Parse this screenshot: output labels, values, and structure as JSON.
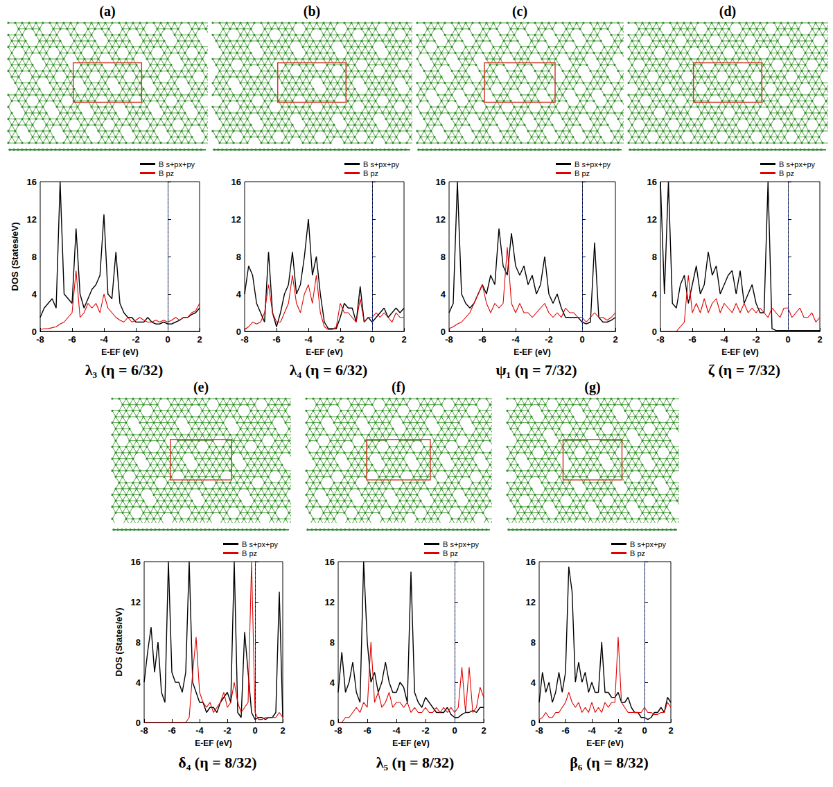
{
  "chart_data": [
    {
      "type": "line",
      "panel": "(a)",
      "title": "λ₃ (η = 6/32)",
      "x_label": "E-EF (eV)",
      "y_label": "DOS (States/eV)",
      "xlim": [
        -8,
        2
      ],
      "xticks": [
        -8,
        -6,
        -4,
        -2,
        0,
        2
      ],
      "ylim": [
        0,
        16
      ],
      "yticks": [
        0,
        4,
        8,
        12,
        16
      ],
      "fermi_level": 0,
      "legend": "top",
      "x": [
        -8,
        -7.75,
        -7.5,
        -7.25,
        -7,
        -6.75,
        -6.5,
        -6.25,
        -6,
        -5.75,
        -5.5,
        -5.25,
        -5,
        -4.75,
        -4.5,
        -4.25,
        -4,
        -3.75,
        -3.5,
        -3.25,
        -3,
        -2.75,
        -2.5,
        -2.25,
        -2,
        -1.75,
        -1.5,
        -1.25,
        -1,
        -0.75,
        -0.5,
        -0.25,
        0,
        0.25,
        0.5,
        0.75,
        1,
        1.25,
        1.5,
        1.75,
        2
      ],
      "series": [
        {
          "name": "B s+px+py",
          "color": "#000000",
          "values": [
            1.5,
            2.5,
            3,
            3.5,
            2.5,
            16,
            4,
            3.5,
            3,
            11,
            4,
            2.5,
            3.5,
            4.5,
            5,
            6,
            12.5,
            4,
            3.5,
            8.5,
            3,
            2,
            1.5,
            1.5,
            1,
            1,
            1,
            1.5,
            1,
            0.8,
            0.8,
            1,
            0.8,
            0.8,
            1,
            1.2,
            1.5,
            1.5,
            1.8,
            2,
            2.5
          ]
        },
        {
          "name": "B pz",
          "color": "#e00000",
          "values": [
            0.2,
            0.3,
            0.3,
            0.4,
            0.5,
            0.8,
            1,
            1.5,
            2,
            6.5,
            1.5,
            2,
            3,
            2.5,
            3,
            2,
            4,
            2.5,
            2,
            1.5,
            1.2,
            1,
            1.5,
            1,
            1.2,
            1.5,
            1.2,
            1,
            1,
            1.2,
            1,
            1.2,
            1,
            1.2,
            1.5,
            1.2,
            1.5,
            1.5,
            2,
            2.2,
            3
          ]
        }
      ]
    },
    {
      "type": "line",
      "panel": "(b)",
      "title": "λ₄ (η = 6/32)",
      "x_label": "E-EF (eV)",
      "xlim": [
        -8,
        2
      ],
      "xticks": [
        -8,
        -6,
        -4,
        -2,
        0,
        2
      ],
      "ylim": [
        0,
        16
      ],
      "yticks": [
        0,
        4,
        8,
        12,
        16
      ],
      "fermi_level": 0,
      "legend": "top",
      "x": [
        -8,
        -7.75,
        -7.5,
        -7.25,
        -7,
        -6.75,
        -6.5,
        -6.25,
        -6,
        -5.75,
        -5.5,
        -5.25,
        -5,
        -4.75,
        -4.5,
        -4.25,
        -4,
        -3.75,
        -3.5,
        -3.25,
        -3,
        -2.75,
        -2.5,
        -2.25,
        -2,
        -1.75,
        -1.5,
        -1.25,
        -1,
        -0.75,
        -0.5,
        -0.25,
        0,
        0.25,
        0.5,
        0.75,
        1,
        1.25,
        1.5,
        1.75,
        2
      ],
      "series": [
        {
          "name": "B s+px+py",
          "color": "#000000",
          "values": [
            4,
            7,
            6,
            3,
            2,
            1,
            8.5,
            2,
            0.5,
            2,
            4,
            5,
            8.5,
            4,
            5,
            8,
            12,
            6,
            8,
            4,
            1,
            0.3,
            0.3,
            0.3,
            1.5,
            3,
            2.5,
            2.5,
            1,
            4.8,
            1,
            1.5,
            1,
            1.5,
            2,
            2.5,
            1.5,
            2,
            2.5,
            2,
            2.5
          ]
        },
        {
          "name": "B pz",
          "color": "#e00000",
          "values": [
            0.2,
            0.5,
            1,
            0.8,
            1,
            2,
            5,
            2,
            1,
            1,
            2,
            3,
            6,
            3,
            2,
            4,
            5,
            3,
            6,
            2,
            0.5,
            0.2,
            0.2,
            0.5,
            3,
            2,
            2,
            1.5,
            1,
            3.5,
            1,
            1.5,
            1.5,
            2,
            1.5,
            2,
            1.5,
            1,
            2,
            1.5,
            1.5
          ]
        }
      ]
    },
    {
      "type": "line",
      "panel": "(c)",
      "title": "ψ₁ (η = 7/32)",
      "x_label": "E-EF (eV)",
      "xlim": [
        -8,
        2
      ],
      "xticks": [
        -8,
        -6,
        -4,
        -2,
        0,
        2
      ],
      "ylim": [
        0,
        16
      ],
      "yticks": [
        0,
        4,
        8,
        12,
        16
      ],
      "fermi_level": 0,
      "legend": "top",
      "x": [
        -8,
        -7.75,
        -7.5,
        -7.25,
        -7,
        -6.75,
        -6.5,
        -6.25,
        -6,
        -5.75,
        -5.5,
        -5.25,
        -5,
        -4.75,
        -4.5,
        -4.25,
        -4,
        -3.75,
        -3.5,
        -3.25,
        -3,
        -2.75,
        -2.5,
        -2.25,
        -2,
        -1.75,
        -1.5,
        -1.25,
        -1,
        -0.75,
        -0.5,
        -0.25,
        0,
        0.25,
        0.5,
        0.75,
        1,
        1.25,
        1.5,
        1.75,
        2
      ],
      "series": [
        {
          "name": "B s+px+py",
          "color": "#000000",
          "values": [
            2,
            3,
            16,
            4,
            3,
            2.5,
            3,
            4,
            5,
            4,
            6,
            5,
            11,
            7,
            6,
            10.5,
            7,
            6,
            7,
            5,
            6,
            4,
            5,
            8,
            4,
            3,
            4,
            2.5,
            1.5,
            1.5,
            1.5,
            1.5,
            1,
            0.8,
            1,
            9.5,
            1.5,
            1,
            1,
            1.2,
            1.5
          ]
        },
        {
          "name": "B pz",
          "color": "#e00000",
          "values": [
            0.3,
            0.5,
            0.8,
            1,
            1.5,
            2,
            3,
            4,
            5,
            3,
            2,
            3,
            2.5,
            3,
            9,
            3,
            2,
            3,
            2,
            2,
            1.5,
            2,
            2.5,
            3,
            2,
            1.5,
            2,
            1.5,
            2.5,
            2,
            2,
            1.5,
            1.5,
            1,
            1.5,
            2,
            1.5,
            1.5,
            1.2,
            1.5,
            2
          ]
        }
      ]
    },
    {
      "type": "line",
      "panel": "(d)",
      "title": "ζ (η = 7/32)",
      "x_label": "E-EF (eV)",
      "xlim": [
        -8,
        2
      ],
      "xticks": [
        -8,
        -6,
        -4,
        -2,
        0,
        2
      ],
      "ylim": [
        0,
        16
      ],
      "yticks": [
        0,
        4,
        8,
        12,
        16
      ],
      "fermi_level": 0,
      "legend": "top",
      "x": [
        -8,
        -7.75,
        -7.5,
        -7.25,
        -7,
        -6.75,
        -6.5,
        -6.25,
        -6,
        -5.75,
        -5.5,
        -5.25,
        -5,
        -4.75,
        -4.5,
        -4.25,
        -4,
        -3.75,
        -3.5,
        -3.25,
        -3,
        -2.75,
        -2.5,
        -2.25,
        -2,
        -1.75,
        -1.5,
        -1.25,
        -1,
        -0.75,
        -0.5,
        -0.25,
        0,
        0.25,
        0.5,
        0.75,
        1,
        1.25,
        1.5,
        1.75,
        2
      ],
      "series": [
        {
          "name": "B s+px+py",
          "color": "#000000",
          "values": [
            16,
            4,
            16,
            3,
            2.5,
            5,
            6,
            3,
            5,
            7,
            4,
            5,
            8.5,
            6,
            7,
            4,
            5,
            6,
            6.5,
            4,
            6.5,
            3,
            4,
            5,
            3,
            2,
            2,
            16,
            0.3,
            0.1,
            0.1,
            0.1,
            0.1,
            0.1,
            0.1,
            0.1,
            0.1,
            0.1,
            0.1,
            0.1,
            0.1
          ]
        },
        {
          "name": "B pz",
          "color": "#e00000",
          "values": [
            0,
            0,
            0,
            0,
            0,
            0.5,
            1,
            6,
            2,
            3,
            2,
            3.5,
            2,
            3,
            3.5,
            2,
            3,
            2.5,
            2,
            3,
            2,
            3,
            2,
            2.5,
            2,
            2.5,
            2,
            1.5,
            2.5,
            2,
            1.5,
            2.5,
            2.5,
            1.5,
            2,
            2.5,
            1.5,
            1.5,
            2,
            1,
            1.5
          ]
        }
      ]
    },
    {
      "type": "line",
      "panel": "(e)",
      "title": "δ₄ (η = 8/32)",
      "x_label": "E-EF (eV)",
      "y_label": "DOS (States/eV)",
      "xlim": [
        -8,
        2
      ],
      "xticks": [
        -8,
        -6,
        -4,
        -2,
        0,
        2
      ],
      "ylim": [
        0,
        16
      ],
      "yticks": [
        0,
        4,
        8,
        12,
        16
      ],
      "fermi_level": 0,
      "legend": "top",
      "x": [
        -8,
        -7.75,
        -7.5,
        -7.25,
        -7,
        -6.75,
        -6.5,
        -6.25,
        -6,
        -5.75,
        -5.5,
        -5.25,
        -5,
        -4.75,
        -4.5,
        -4.25,
        -4,
        -3.75,
        -3.5,
        -3.25,
        -3,
        -2.75,
        -2.5,
        -2.25,
        -2,
        -1.75,
        -1.5,
        -1.25,
        -1,
        -0.75,
        -0.5,
        -0.25,
        0,
        0.25,
        0.5,
        0.75,
        1,
        1.25,
        1.5,
        1.75,
        2
      ],
      "series": [
        {
          "name": "B s+px+py",
          "color": "#000000",
          "values": [
            4,
            7,
            9.5,
            5,
            8,
            3,
            2,
            16,
            5,
            4,
            4,
            3,
            5,
            16,
            4,
            3,
            2,
            2,
            1,
            1.5,
            1.5,
            1,
            2,
            2.5,
            3,
            2,
            16,
            1,
            0.5,
            9,
            5,
            1,
            0.3,
            0.5,
            0.5,
            0.3,
            0.5,
            0.5,
            1,
            13,
            0.5
          ]
        },
        {
          "name": "B pz",
          "color": "#e00000",
          "values": [
            0,
            0,
            0,
            0,
            0,
            0,
            0,
            0,
            0,
            0,
            0,
            0,
            0,
            0.5,
            5,
            8.5,
            3,
            2,
            1.5,
            2,
            1,
            1.5,
            2,
            3,
            1.5,
            2,
            4,
            2,
            1,
            1.5,
            2,
            16,
            1,
            0.3,
            0.3,
            0.5,
            0.5,
            0.5,
            0.5,
            1,
            0.5
          ]
        }
      ]
    },
    {
      "type": "line",
      "panel": "(f)",
      "title": "λ₅ (η = 8/32)",
      "x_label": "E-EF (eV)",
      "xlim": [
        -8,
        2
      ],
      "xticks": [
        -8,
        -6,
        -4,
        -2,
        0,
        2
      ],
      "ylim": [
        0,
        16
      ],
      "yticks": [
        0,
        4,
        8,
        12,
        16
      ],
      "fermi_level": 0,
      "legend": "top",
      "x": [
        -8,
        -7.75,
        -7.5,
        -7.25,
        -7,
        -6.75,
        -6.5,
        -6.25,
        -6,
        -5.75,
        -5.5,
        -5.25,
        -5,
        -4.75,
        -4.5,
        -4.25,
        -4,
        -3.75,
        -3.5,
        -3.25,
        -3,
        -2.75,
        -2.5,
        -2.25,
        -2,
        -1.75,
        -1.5,
        -1.25,
        -1,
        -0.75,
        -0.5,
        -0.25,
        0,
        0.25,
        0.5,
        0.75,
        1,
        1.25,
        1.5,
        1.75,
        2
      ],
      "series": [
        {
          "name": "B s+px+py",
          "color": "#000000",
          "values": [
            3,
            7,
            3,
            4,
            6,
            3,
            2,
            16,
            8,
            4,
            5,
            3,
            4,
            6,
            4,
            3,
            3,
            4,
            3.5,
            2,
            15,
            3,
            2,
            1.5,
            2.5,
            2,
            1.5,
            1,
            1,
            1,
            1.5,
            0.8,
            0.5,
            0.5,
            0.8,
            1,
            1,
            1.2,
            1,
            1.5,
            1.5
          ]
        },
        {
          "name": "B pz",
          "color": "#e00000",
          "values": [
            0,
            0,
            0.5,
            0.5,
            1,
            1.5,
            1,
            2,
            1.5,
            8,
            2,
            3,
            1.5,
            2,
            3,
            1.5,
            2,
            2,
            1.5,
            2,
            1,
            1.5,
            1,
            1,
            1.5,
            1,
            1,
            1.5,
            1,
            1.5,
            1,
            1.5,
            1,
            1.5,
            5.5,
            1,
            5.5,
            1,
            1.5,
            3.5,
            2.5
          ]
        }
      ]
    },
    {
      "type": "line",
      "panel": "(g)",
      "title": "β₆ (η = 8/32)",
      "x_label": "E-EF (eV)",
      "xlim": [
        -8,
        2
      ],
      "xticks": [
        -8,
        -6,
        -4,
        -2,
        0,
        2
      ],
      "ylim": [
        0,
        16
      ],
      "yticks": [
        0,
        4,
        8,
        12,
        16
      ],
      "fermi_level": 0,
      "legend": "top",
      "x": [
        -8,
        -7.75,
        -7.5,
        -7.25,
        -7,
        -6.75,
        -6.5,
        -6.25,
        -6,
        -5.75,
        -5.5,
        -5.25,
        -5,
        -4.75,
        -4.5,
        -4.25,
        -4,
        -3.75,
        -3.5,
        -3.25,
        -3,
        -2.75,
        -2.5,
        -2.25,
        -2,
        -1.75,
        -1.5,
        -1.25,
        -1,
        -0.75,
        -0.5,
        -0.25,
        0,
        0.25,
        0.5,
        0.75,
        1,
        1.25,
        1.5,
        1.75,
        2
      ],
      "series": [
        {
          "name": "B s+px+py",
          "color": "#000000",
          "values": [
            2,
            5,
            3,
            4,
            2,
            3,
            5,
            3,
            5,
            15.5,
            13,
            4,
            6,
            4,
            5,
            3,
            4,
            3,
            3,
            8,
            3,
            3,
            2.5,
            2.5,
            3,
            2,
            2,
            2.5,
            1.5,
            1,
            1,
            0.5,
            0.5,
            0.3,
            0.5,
            1,
            1,
            1.5,
            1,
            2.5,
            2
          ]
        },
        {
          "name": "B pz",
          "color": "#e00000",
          "values": [
            0.3,
            0.5,
            1,
            0.5,
            0.5,
            1,
            1,
            1.5,
            2,
            3,
            2,
            1.5,
            2,
            1,
            1.5,
            1,
            2,
            1,
            1.5,
            1,
            2,
            1.5,
            2,
            2,
            8.5,
            2,
            1.5,
            1,
            1,
            1,
            1,
            1,
            1.5,
            1,
            1,
            0.8,
            0.8,
            1,
            1,
            2,
            1.5
          ]
        }
      ]
    }
  ]
}
